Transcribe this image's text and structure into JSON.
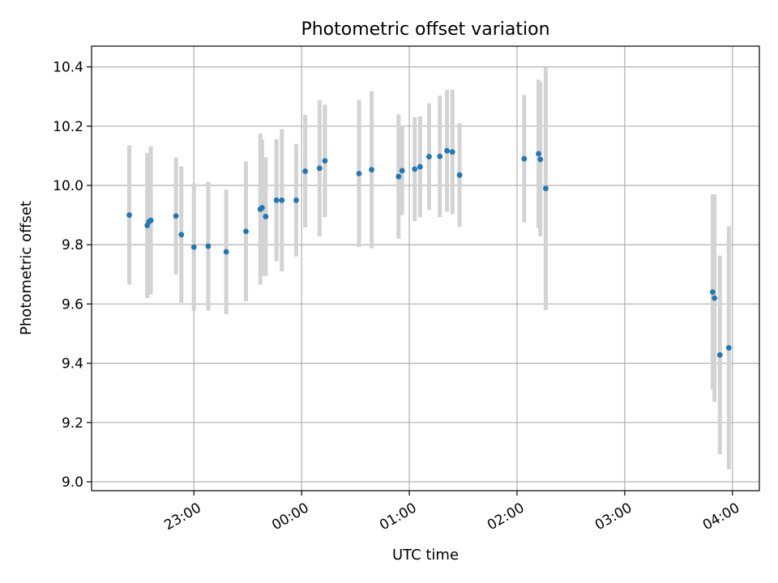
{
  "chart_data": {
    "type": "scatter",
    "title": "Photometric offset variation",
    "xlabel": "UTC time",
    "ylabel": "Photometric offset",
    "x_unit": "UTC",
    "xlim": [
      "22:03",
      "04:15"
    ],
    "ylim": [
      8.97,
      10.47
    ],
    "grid": true,
    "x_ticks": [
      "23:00",
      "00:00",
      "01:00",
      "02:00",
      "03:00",
      "04:00"
    ],
    "y_ticks": [
      "9.0",
      "9.2",
      "9.4",
      "9.6",
      "9.8",
      "10.0",
      "10.2",
      "10.4"
    ],
    "colors": {
      "points": "#1f77b4",
      "errorbars": "#d3d3d3",
      "grid": "#b0b0b0"
    },
    "points": [
      {
        "x": "22:24",
        "y": 9.9,
        "err": 0.235
      },
      {
        "x": "22:34",
        "y": 9.865,
        "err": 0.245
      },
      {
        "x": "22:35",
        "y": 9.878,
        "err": 0.23
      },
      {
        "x": "22:36",
        "y": 9.882,
        "err": 0.25
      },
      {
        "x": "22:50",
        "y": 9.897,
        "err": 0.197
      },
      {
        "x": "22:53",
        "y": 9.834,
        "err": 0.23
      },
      {
        "x": "23:00",
        "y": 9.792,
        "err": 0.215
      },
      {
        "x": "23:08",
        "y": 9.795,
        "err": 0.217
      },
      {
        "x": "23:18",
        "y": 9.776,
        "err": 0.21
      },
      {
        "x": "23:29",
        "y": 9.845,
        "err": 0.236
      },
      {
        "x": "23:37",
        "y": 9.92,
        "err": 0.255
      },
      {
        "x": "23:38",
        "y": 9.925,
        "err": 0.23
      },
      {
        "x": "23:40",
        "y": 9.895,
        "err": 0.2
      },
      {
        "x": "23:46",
        "y": 9.95,
        "err": 0.206
      },
      {
        "x": "23:49",
        "y": 9.95,
        "err": 0.24
      },
      {
        "x": "23:57",
        "y": 9.95,
        "err": 0.19
      },
      {
        "x": "00:02",
        "y": 10.048,
        "err": 0.19
      },
      {
        "x": "00:10",
        "y": 10.058,
        "err": 0.23
      },
      {
        "x": "00:13",
        "y": 10.083,
        "err": 0.19
      },
      {
        "x": "00:32",
        "y": 10.04,
        "err": 0.248
      },
      {
        "x": "00:39",
        "y": 10.053,
        "err": 0.265
      },
      {
        "x": "00:54",
        "y": 10.03,
        "err": 0.21
      },
      {
        "x": "00:56",
        "y": 10.05,
        "err": 0.15
      },
      {
        "x": "01:03",
        "y": 10.055,
        "err": 0.175
      },
      {
        "x": "01:06",
        "y": 10.063,
        "err": 0.17
      },
      {
        "x": "01:11",
        "y": 10.097,
        "err": 0.18
      },
      {
        "x": "01:17",
        "y": 10.098,
        "err": 0.205
      },
      {
        "x": "01:21",
        "y": 10.117,
        "err": 0.205
      },
      {
        "x": "01:24",
        "y": 10.113,
        "err": 0.21
      },
      {
        "x": "01:28",
        "y": 10.035,
        "err": 0.175
      },
      {
        "x": "02:04",
        "y": 10.09,
        "err": 0.215
      },
      {
        "x": "02:12",
        "y": 10.107,
        "err": 0.25
      },
      {
        "x": "02:13",
        "y": 10.088,
        "err": 0.26
      },
      {
        "x": "02:16",
        "y": 9.99,
        "err": 0.41
      },
      {
        "x": "03:49",
        "y": 9.64,
        "err": 0.33
      },
      {
        "x": "03:50",
        "y": 9.62,
        "err": 0.35
      },
      {
        "x": "03:53",
        "y": 9.428,
        "err": 0.335
      },
      {
        "x": "03:58",
        "y": 9.452,
        "err": 0.41
      }
    ]
  }
}
